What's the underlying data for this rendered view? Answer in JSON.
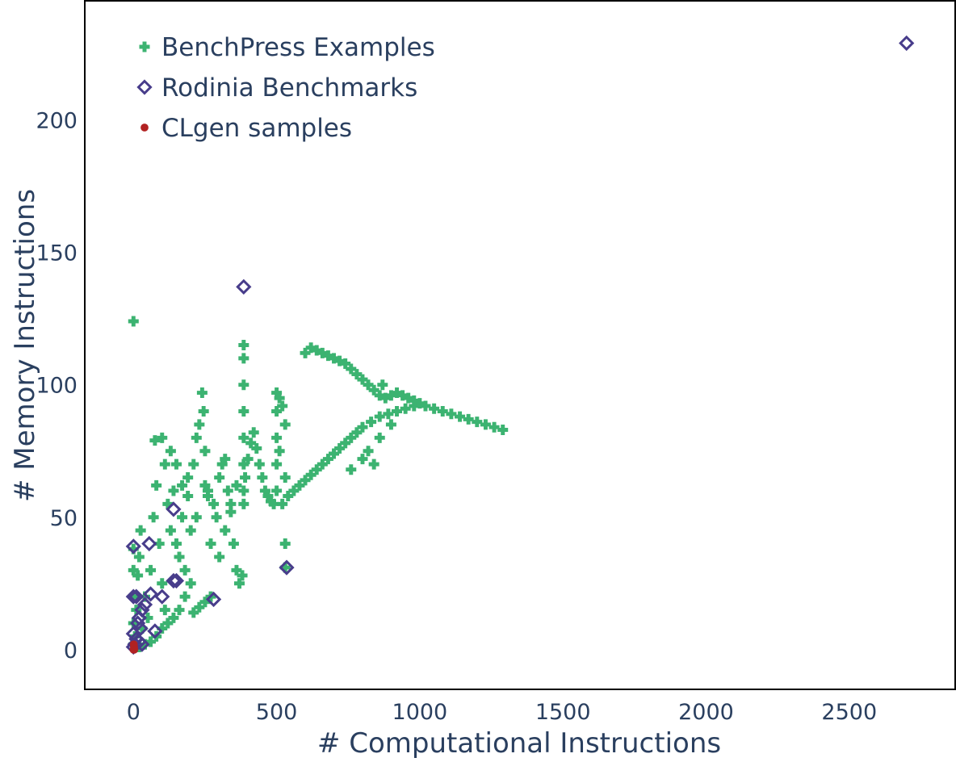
{
  "chart_data": {
    "type": "scatter",
    "xlabel": "# Computational Instructions",
    "ylabel": "# Memory Instructions",
    "xlim": [
      -170,
      2870
    ],
    "ylim": [
      -15,
      245
    ],
    "x_ticks": [
      0,
      500,
      1000,
      1500,
      2000,
      2500
    ],
    "y_ticks": [
      0,
      50,
      100,
      150,
      200
    ],
    "x_tick_labels": [
      "0",
      "500",
      "1000",
      "1500",
      "2000",
      "2500"
    ],
    "y_tick_labels": [
      "0",
      "50",
      "100",
      "150",
      "200"
    ],
    "grid": false,
    "legend_position": "top-left",
    "colors": {
      "benchpress": "#3cb371",
      "rodinia": "#483d8b",
      "clgen": "#b22222",
      "axis": "#2a3f5f",
      "frame": "#000000"
    },
    "legend": [
      {
        "label": "BenchPress Examples",
        "marker": "cross",
        "series_index": 0
      },
      {
        "label": "Rodinia Benchmarks",
        "marker": "diamond-open",
        "series_index": 1
      },
      {
        "label": "CLgen samples",
        "marker": "circle",
        "series_index": 2
      }
    ],
    "series": [
      {
        "name": "BenchPress Examples",
        "marker": "cross",
        "color": "#3cb371",
        "points": [
          [
            0,
            124
          ],
          [
            0,
            2
          ],
          [
            0,
            10
          ],
          [
            0,
            20
          ],
          [
            0,
            30
          ],
          [
            0,
            38
          ],
          [
            5,
            5
          ],
          [
            10,
            15
          ],
          [
            15,
            28
          ],
          [
            20,
            35
          ],
          [
            25,
            45
          ],
          [
            30,
            8
          ],
          [
            40,
            20
          ],
          [
            50,
            12
          ],
          [
            60,
            30
          ],
          [
            70,
            50
          ],
          [
            80,
            62
          ],
          [
            90,
            40
          ],
          [
            100,
            25
          ],
          [
            110,
            15
          ],
          [
            75,
            79
          ],
          [
            100,
            80
          ],
          [
            110,
            70
          ],
          [
            120,
            55
          ],
          [
            130,
            45
          ],
          [
            140,
            60
          ],
          [
            150,
            40
          ],
          [
            160,
            35
          ],
          [
            170,
            50
          ],
          [
            180,
            30
          ],
          [
            190,
            65
          ],
          [
            200,
            45
          ],
          [
            210,
            70
          ],
          [
            220,
            80
          ],
          [
            230,
            85
          ],
          [
            240,
            97
          ],
          [
            245,
            90
          ],
          [
            250,
            75
          ],
          [
            260,
            60
          ],
          [
            270,
            40
          ],
          [
            280,
            55
          ],
          [
            290,
            50
          ],
          [
            300,
            65
          ],
          [
            310,
            70
          ],
          [
            320,
            72
          ],
          [
            330,
            60
          ],
          [
            340,
            52
          ],
          [
            350,
            40
          ],
          [
            360,
            30
          ],
          [
            370,
            25
          ],
          [
            380,
            28
          ],
          [
            385,
            115
          ],
          [
            385,
            110
          ],
          [
            385,
            100
          ],
          [
            385,
            90
          ],
          [
            385,
            80
          ],
          [
            385,
            70
          ],
          [
            385,
            60
          ],
          [
            385,
            55
          ],
          [
            390,
            65
          ],
          [
            400,
            72
          ],
          [
            410,
            78
          ],
          [
            420,
            82
          ],
          [
            430,
            76
          ],
          [
            440,
            70
          ],
          [
            450,
            65
          ],
          [
            460,
            60
          ],
          [
            470,
            58
          ],
          [
            480,
            56
          ],
          [
            490,
            55
          ],
          [
            500,
            97
          ],
          [
            500,
            90
          ],
          [
            500,
            80
          ],
          [
            500,
            70
          ],
          [
            500,
            60
          ],
          [
            510,
            95
          ],
          [
            510,
            75
          ],
          [
            520,
            92
          ],
          [
            520,
            55
          ],
          [
            530,
            85
          ],
          [
            530,
            65
          ],
          [
            530,
            40
          ],
          [
            530,
            31
          ],
          [
            540,
            58
          ],
          [
            560,
            60
          ],
          [
            580,
            62
          ],
          [
            600,
            64
          ],
          [
            620,
            66
          ],
          [
            640,
            68
          ],
          [
            660,
            70
          ],
          [
            680,
            72
          ],
          [
            700,
            74
          ],
          [
            720,
            76
          ],
          [
            740,
            78
          ],
          [
            760,
            80
          ],
          [
            780,
            82
          ],
          [
            800,
            84
          ],
          [
            830,
            86
          ],
          [
            860,
            88
          ],
          [
            890,
            89
          ],
          [
            920,
            90
          ],
          [
            950,
            91
          ],
          [
            980,
            92
          ],
          [
            1000,
            93
          ],
          [
            1020,
            92
          ],
          [
            1050,
            91
          ],
          [
            1080,
            90
          ],
          [
            1110,
            89
          ],
          [
            1140,
            88
          ],
          [
            1170,
            87
          ],
          [
            1200,
            86
          ],
          [
            1230,
            85
          ],
          [
            1260,
            84
          ],
          [
            1290,
            83
          ],
          [
            600,
            112
          ],
          [
            620,
            114
          ],
          [
            640,
            113
          ],
          [
            660,
            112
          ],
          [
            680,
            111
          ],
          [
            700,
            110
          ],
          [
            720,
            109
          ],
          [
            740,
            108
          ],
          [
            760,
            106
          ],
          [
            780,
            104
          ],
          [
            800,
            102
          ],
          [
            820,
            100
          ],
          [
            840,
            98
          ],
          [
            860,
            96
          ],
          [
            880,
            95
          ],
          [
            900,
            96
          ],
          [
            920,
            97
          ],
          [
            940,
            96
          ],
          [
            960,
            95
          ],
          [
            980,
            94
          ],
          [
            840,
            70
          ],
          [
            800,
            72
          ],
          [
            760,
            68
          ],
          [
            860,
            80
          ],
          [
            900,
            85
          ],
          [
            870,
            100
          ],
          [
            820,
            75
          ],
          [
            250,
            62
          ],
          [
            260,
            58
          ],
          [
            220,
            50
          ],
          [
            200,
            25
          ],
          [
            180,
            20
          ],
          [
            160,
            15
          ],
          [
            140,
            12
          ],
          [
            120,
            10
          ],
          [
            100,
            8
          ],
          [
            80,
            5
          ],
          [
            60,
            3
          ],
          [
            40,
            2
          ],
          [
            20,
            1
          ],
          [
            270,
            20
          ],
          [
            250,
            18
          ],
          [
            230,
            16
          ],
          [
            210,
            14
          ],
          [
            300,
            35
          ],
          [
            320,
            45
          ],
          [
            340,
            55
          ],
          [
            360,
            62
          ],
          [
            150,
            70
          ],
          [
            130,
            75
          ],
          [
            170,
            62
          ],
          [
            190,
            58
          ]
        ]
      },
      {
        "name": "Rodinia Benchmarks",
        "marker": "diamond-open",
        "color": "#483d8b",
        "points": [
          [
            2700,
            229
          ],
          [
            385,
            137
          ],
          [
            535,
            31
          ],
          [
            140,
            53
          ],
          [
            55,
            40
          ],
          [
            0,
            39
          ],
          [
            140,
            26
          ],
          [
            150,
            26
          ],
          [
            280,
            19
          ],
          [
            100,
            20
          ],
          [
            60,
            21
          ],
          [
            10,
            20
          ],
          [
            0,
            20
          ],
          [
            40,
            17
          ],
          [
            30,
            15
          ],
          [
            20,
            12
          ],
          [
            15,
            10
          ],
          [
            25,
            8
          ],
          [
            75,
            7
          ],
          [
            0,
            6
          ],
          [
            10,
            4
          ],
          [
            20,
            3
          ],
          [
            30,
            2
          ],
          [
            0,
            1
          ],
          [
            5,
            2
          ]
        ]
      },
      {
        "name": "CLgen samples",
        "marker": "circle",
        "color": "#b22222",
        "points": [
          [
            0,
            0
          ],
          [
            2,
            1
          ],
          [
            1,
            2
          ],
          [
            3,
            0
          ]
        ]
      }
    ]
  }
}
